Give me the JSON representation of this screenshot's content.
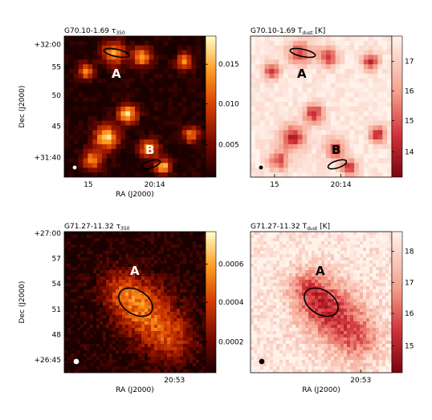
{
  "panels": [
    {
      "id": "g70-tau",
      "title_main": "G70.10-1.69 τ",
      "title_sub": "350",
      "title_tail": "",
      "map": "tau",
      "seed": 11,
      "variant": "filament",
      "colorbar_ticks": [
        "0.015",
        "0.010",
        "0.005"
      ],
      "colorbar_fracs": [
        0.8,
        0.52,
        0.23
      ],
      "y_ticks": [
        "+32:00",
        "55",
        "50",
        "45",
        "+31:40"
      ],
      "x_ticks": [
        "15",
        "20:14"
      ],
      "x_label": "RA (J2000)",
      "y_label": "Dec (J2000)",
      "labels": [
        "A",
        "B"
      ],
      "label_color": "#ffffff"
    },
    {
      "id": "g70-tdust",
      "title_main": "G70.10-1.69 T",
      "title_sub": "dust",
      "title_tail": " [K]",
      "map": "tdust",
      "seed": 23,
      "variant": "filament",
      "colorbar_ticks": [
        "17",
        "16",
        "15",
        "14"
      ],
      "colorbar_fracs": [
        0.82,
        0.61,
        0.4,
        0.18
      ],
      "y_ticks": [],
      "x_ticks": [
        "15",
        "20:14"
      ],
      "x_label": "",
      "y_label": "",
      "labels": [
        "A",
        "B"
      ],
      "label_color": "#000000"
    },
    {
      "id": "g71-tau",
      "title_main": "G71.27-11.32 τ",
      "title_sub": "350",
      "title_tail": "",
      "map": "tau",
      "seed": 37,
      "variant": "diffuse",
      "colorbar_ticks": [
        "0.0006",
        "0.0004",
        "0.0002"
      ],
      "colorbar_fracs": [
        0.77,
        0.5,
        0.22
      ],
      "y_ticks": [
        "+27:00",
        "57",
        "54",
        "51",
        "48",
        "+26:45"
      ],
      "x_ticks": [
        "20:53"
      ],
      "x_label": "RA (J2000)",
      "y_label": "Dec (J2000)",
      "labels": [
        "A"
      ],
      "label_color": "#ffffff"
    },
    {
      "id": "g71-tdust",
      "title_main": "G71.27-11.32 T",
      "title_sub": "dust",
      "title_tail": " [K]",
      "map": "tdust",
      "seed": 41,
      "variant": "diffuse",
      "colorbar_ticks": [
        "18",
        "17",
        "16",
        "15"
      ],
      "colorbar_fracs": [
        0.86,
        0.64,
        0.42,
        0.19
      ],
      "y_ticks": [],
      "x_ticks": [
        "20:53"
      ],
      "x_label": "RA (J2000)",
      "y_label": "",
      "labels": [
        "A"
      ],
      "label_color": "#000000"
    }
  ]
}
